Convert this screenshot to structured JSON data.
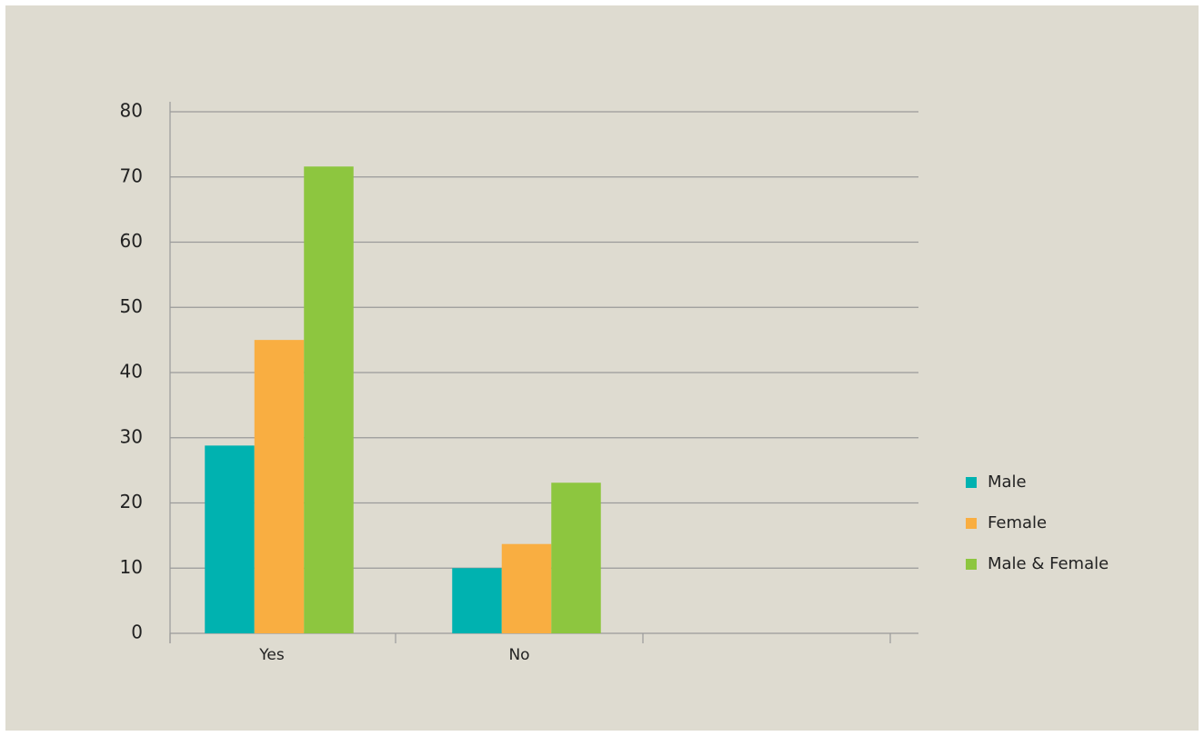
{
  "chart_data": {
    "type": "bar",
    "categories": [
      "Yes",
      "No",
      null
    ],
    "series": [
      {
        "name": "Male",
        "color": "#00b2b0",
        "values": [
          28.8,
          10,
          null
        ]
      },
      {
        "name": "Female",
        "color": "#f9ae41",
        "values": [
          45,
          13.7,
          null
        ]
      },
      {
        "name": "Male & Female",
        "color": "#8dc63f",
        "values": [
          71.6,
          23.1,
          null
        ]
      }
    ],
    "ylim": [
      0,
      80
    ],
    "yticks": [
      0,
      10,
      20,
      30,
      40,
      50,
      60,
      70,
      80
    ],
    "grid": true,
    "legend": "right"
  }
}
